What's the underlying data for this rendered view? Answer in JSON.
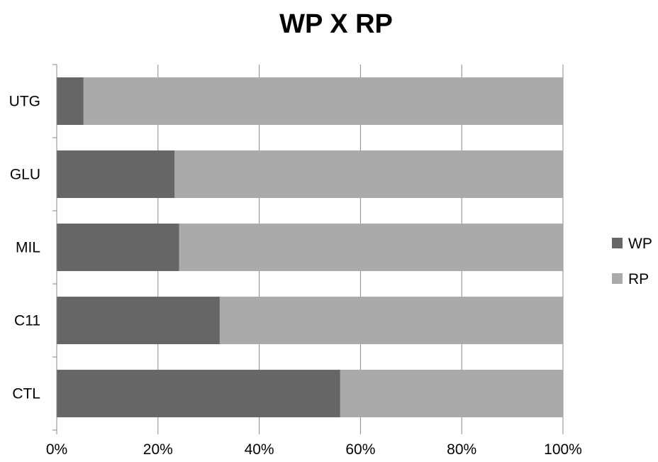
{
  "chart_data": {
    "type": "bar",
    "orientation": "horizontal",
    "stacked": "percent",
    "title": "WP X RP",
    "xlabel": "",
    "ylabel": "",
    "categories": [
      "UTG",
      "GLU",
      "MIL",
      "C11",
      "CTL"
    ],
    "series": [
      {
        "name": "WP",
        "values": [
          5.3,
          23.3,
          24.2,
          32.2,
          56.0
        ],
        "color": "#666666"
      },
      {
        "name": "RP",
        "values": [
          94.7,
          76.7,
          75.8,
          67.8,
          44.0
        ],
        "color": "#aaaaaa"
      }
    ],
    "xlim": [
      0,
      100
    ],
    "x_ticks": [
      "0%",
      "20%",
      "40%",
      "60%",
      "80%",
      "100%"
    ],
    "grid": true,
    "legend": "right"
  }
}
